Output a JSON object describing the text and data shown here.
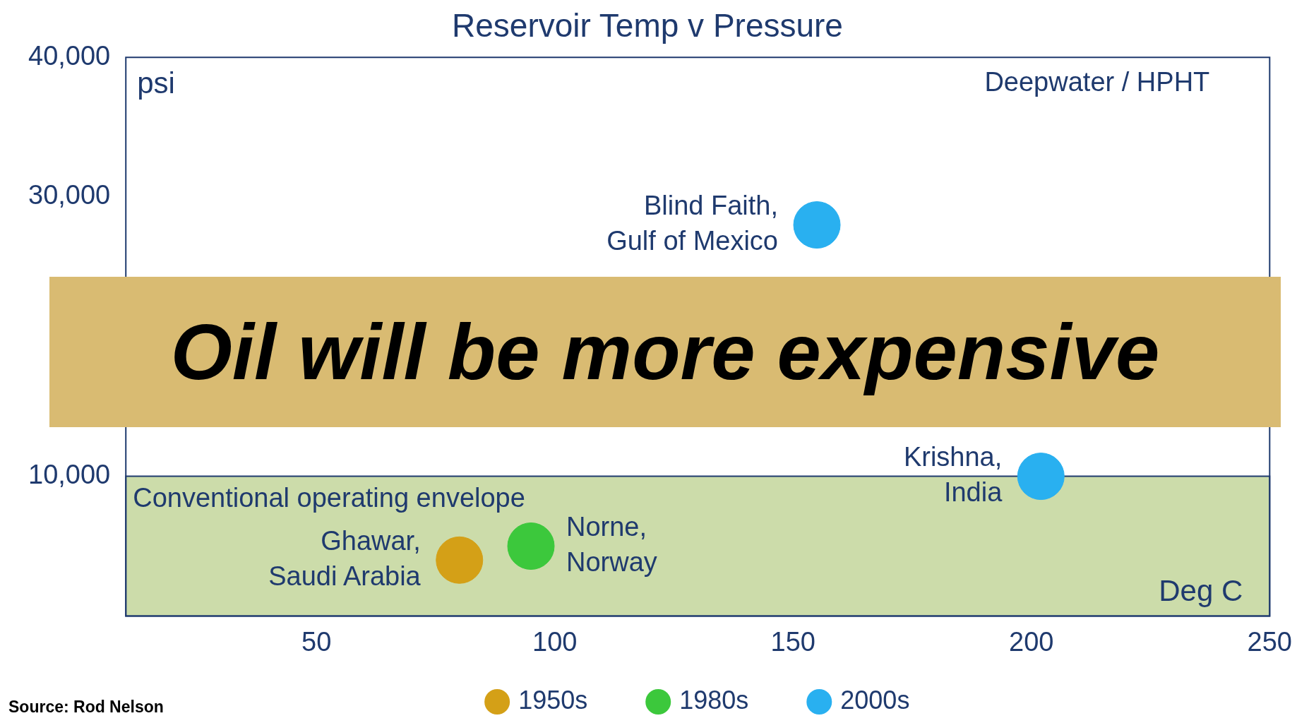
{
  "chart_data": {
    "type": "scatter",
    "title": "Reservoir Temp v Pressure",
    "xlabel": "Deg C",
    "ylabel": "psi",
    "xlim": [
      10,
      250
    ],
    "xticks": [
      50,
      100,
      150,
      200,
      250
    ],
    "ylim": [
      0,
      40000
    ],
    "yticks": [
      {
        "value": 10000,
        "label": "10,000"
      },
      {
        "value": 30000,
        "label": "30,000"
      },
      {
        "value": 40000,
        "label": "40,000"
      }
    ],
    "grid": false,
    "legend": "bottom",
    "marker": "circle",
    "series": [
      {
        "name": "1950s",
        "color": "#d4a017",
        "x": [
          80
        ],
        "values": [
          4000
        ]
      },
      {
        "name": "1980s",
        "color": "#3cc83c",
        "x": [
          95
        ],
        "values": [
          5000
        ]
      },
      {
        "name": "2000s",
        "color": "#29b0f0",
        "x": [
          155,
          202
        ],
        "values": [
          28000,
          10000
        ]
      }
    ],
    "bands": [
      {
        "axis": "y",
        "from": 0,
        "to": 10000,
        "label": "Conventional operating envelope",
        "color": "#ccdcaa"
      }
    ],
    "annotations": [
      {
        "text": "Ghawar,\nSaudi Arabia",
        "x": 80,
        "y": 4000
      },
      {
        "text": "Norne,\nNorway",
        "x": 95,
        "y": 5000
      },
      {
        "text": "Blind Faith,\nGulf of Mexico",
        "x": 155,
        "y": 28000
      },
      {
        "text": "Krishna,\nIndia",
        "x": 202,
        "y": 10000
      },
      "Deepwater / HPHT",
      "Oil will be more expensive",
      "Source: Rod Nelson"
    ]
  }
}
